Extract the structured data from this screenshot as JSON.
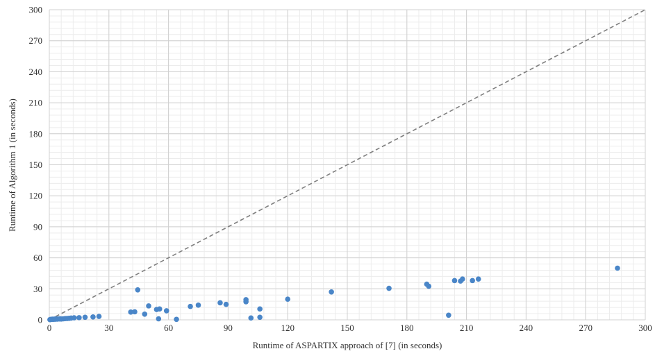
{
  "chart_data": {
    "type": "scatter",
    "title": "",
    "xlabel": "Runtime of ASPARTIX approach of [7] (in seconds)",
    "ylabel": "Runtime of Algorithm 1 (in seconds)",
    "xlim": [
      0,
      300
    ],
    "ylim": [
      0,
      300
    ],
    "major_tick_step": 30,
    "minor_tick_step": 6,
    "grid": true,
    "xticks": [
      "0",
      "30",
      "60",
      "90",
      "120",
      "150",
      "180",
      "210",
      "240",
      "270",
      "300"
    ],
    "yticks": [
      "0",
      "30",
      "60",
      "90",
      "120",
      "150",
      "180",
      "210",
      "240",
      "270",
      "300"
    ],
    "reference_line": {
      "style": "dashed",
      "from": [
        0,
        0
      ],
      "to": [
        300,
        300
      ],
      "color": "#7f7f7f"
    },
    "point_color": "#4a86c8",
    "series": [
      {
        "points": [
          [
            0.3,
            0.2
          ],
          [
            0.6,
            0.4
          ],
          [
            1.0,
            0.5
          ],
          [
            1.5,
            0.6
          ],
          [
            2.0,
            0.5
          ],
          [
            2.5,
            0.7
          ],
          [
            3.0,
            0.6
          ],
          [
            3.5,
            0.8
          ],
          [
            4.0,
            0.7
          ],
          [
            5.0,
            0.9
          ],
          [
            5.5,
            1.0
          ],
          [
            6.0,
            0.8
          ],
          [
            7.0,
            1.0
          ],
          [
            8.0,
            1.2
          ],
          [
            9.0,
            1.3
          ],
          [
            10.0,
            1.5
          ],
          [
            11.0,
            1.7
          ],
          [
            12.5,
            2.0
          ],
          [
            15.0,
            2.1
          ],
          [
            18.0,
            2.5
          ],
          [
            22.0,
            2.8
          ],
          [
            25.0,
            3.3
          ],
          [
            41.0,
            7.5
          ],
          [
            43.0,
            7.8
          ],
          [
            44.5,
            29.0
          ],
          [
            48.0,
            5.5
          ],
          [
            50.0,
            13.5
          ],
          [
            54.0,
            10.0
          ],
          [
            55.0,
            1.0
          ],
          [
            55.5,
            10.5
          ],
          [
            59.0,
            8.8
          ],
          [
            64.0,
            0.5
          ],
          [
            71.0,
            13.0
          ],
          [
            75.0,
            14.2
          ],
          [
            86.0,
            16.5
          ],
          [
            89.0,
            15.0
          ],
          [
            99.0,
            17.5
          ],
          [
            99.0,
            19.5
          ],
          [
            101.5,
            1.8
          ],
          [
            106.0,
            2.5
          ],
          [
            106.0,
            10.5
          ],
          [
            120.0,
            20.0
          ],
          [
            142.0,
            27.0
          ],
          [
            171.0,
            30.5
          ],
          [
            190.0,
            34.5
          ],
          [
            191.0,
            32.5
          ],
          [
            201.0,
            4.5
          ],
          [
            204.0,
            38.0
          ],
          [
            207.0,
            37.5
          ],
          [
            208.0,
            39.5
          ],
          [
            213.0,
            38.0
          ],
          [
            216.0,
            39.5
          ],
          [
            286.0,
            50.0
          ]
        ]
      }
    ]
  }
}
